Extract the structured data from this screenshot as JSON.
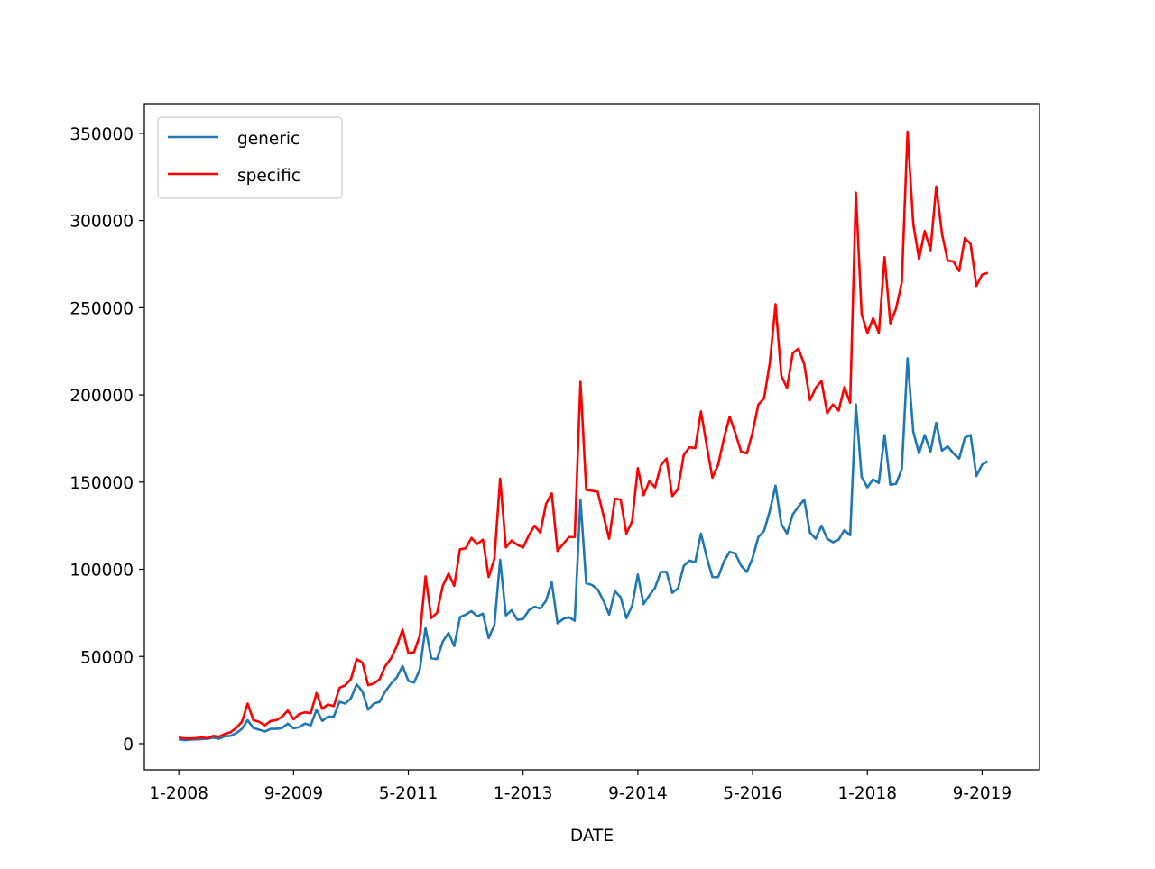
{
  "chart_data": {
    "type": "line",
    "xlabel": "DATE",
    "ylabel": "",
    "ylim": [
      -15000,
      367000
    ],
    "xlim": [
      "2007-07",
      "2020-07"
    ],
    "grid": false,
    "legend_position": "upper-left",
    "x_start": "2008-01",
    "x_step": "1 month",
    "xticks": [
      {
        "label": "1-2008",
        "date": "2008-01"
      },
      {
        "label": "9-2009",
        "date": "2009-09"
      },
      {
        "label": "5-2011",
        "date": "2011-05"
      },
      {
        "label": "1-2013",
        "date": "2013-01"
      },
      {
        "label": "9-2014",
        "date": "2014-09"
      },
      {
        "label": "5-2016",
        "date": "2016-05"
      },
      {
        "label": "1-2018",
        "date": "2018-01"
      },
      {
        "label": "9-2019",
        "date": "2019-09"
      }
    ],
    "yticks": [
      0,
      50000,
      100000,
      150000,
      200000,
      250000,
      300000,
      350000
    ],
    "ytick_labels": [
      "0",
      "50000",
      "100000",
      "150000",
      "200000",
      "250000",
      "300000",
      "350000"
    ],
    "series": [
      {
        "name": "generic",
        "color": "#1f77b4",
        "values": [
          2500,
          2000,
          2300,
          2500,
          2600,
          2800,
          3500,
          2800,
          4200,
          4500,
          6000,
          8500,
          13500,
          9000,
          8000,
          7000,
          8500,
          8500,
          9000,
          11500,
          8800,
          9500,
          11500,
          10500,
          19500,
          13000,
          15500,
          15500,
          24000,
          23000,
          26000,
          34000,
          30000,
          19500,
          23000,
          24000,
          30000,
          34500,
          38000,
          44500,
          36000,
          35000,
          42500,
          66500,
          49000,
          48500,
          58500,
          63500,
          56000,
          72500,
          74000,
          76000,
          73000,
          74500,
          60500,
          68000,
          105500,
          73500,
          76500,
          71000,
          71500,
          76500,
          78500,
          77500,
          82000,
          92500,
          69000,
          71500,
          72500,
          70500,
          140000,
          92000,
          91000,
          88500,
          82000,
          74000,
          87500,
          84000,
          72000,
          79000,
          97000,
          80000,
          85000,
          89500,
          98500,
          98500,
          86500,
          89000,
          102000,
          105000,
          104000,
          120500,
          107000,
          95500,
          95500,
          104500,
          110000,
          109000,
          102000,
          98500,
          106500,
          118500,
          122000,
          133500,
          148000,
          126000,
          120500,
          131500,
          136000,
          140000,
          121000,
          117500,
          125000,
          117500,
          115500,
          117000,
          122500,
          119500,
          194500,
          153000,
          147000,
          151500,
          149500,
          177000,
          148500,
          149000,
          157500,
          221000,
          179000,
          166500,
          177000,
          167500,
          184000,
          168000,
          170500,
          166500,
          163500,
          175500,
          177000,
          153500,
          160000,
          162000
        ]
      },
      {
        "name": "specific",
        "color": "#ff0000",
        "values": [
          3500,
          3000,
          3000,
          3200,
          3500,
          3200,
          4500,
          4000,
          5500,
          6500,
          9000,
          12500,
          23000,
          13500,
          12500,
          10500,
          13000,
          13500,
          15500,
          19000,
          14000,
          17000,
          18000,
          17500,
          29000,
          20000,
          22500,
          21500,
          32000,
          33500,
          37000,
          48500,
          46500,
          33500,
          34500,
          37000,
          44500,
          49000,
          56000,
          65500,
          52000,
          52500,
          62000,
          96000,
          72000,
          75000,
          90500,
          97500,
          90500,
          111500,
          112000,
          118000,
          114500,
          117000,
          95500,
          106000,
          152000,
          112500,
          116500,
          114000,
          112500,
          119500,
          125000,
          121000,
          137500,
          143500,
          110500,
          114500,
          118500,
          118500,
          207500,
          145500,
          145000,
          144500,
          131000,
          117500,
          140500,
          140000,
          120500,
          127500,
          158000,
          142500,
          150500,
          147000,
          159500,
          163500,
          142000,
          146000,
          165500,
          170000,
          169500,
          190500,
          171000,
          152500,
          160000,
          175000,
          187500,
          178000,
          167500,
          166500,
          178500,
          194500,
          198000,
          218500,
          252000,
          211000,
          204000,
          224000,
          226500,
          217500,
          197000,
          204000,
          208000,
          189500,
          194500,
          191000,
          204500,
          195500,
          316000,
          246500,
          235500,
          244000,
          235500,
          279000,
          241000,
          249500,
          264500,
          351000,
          298000,
          278000,
          294000,
          283000,
          319500,
          292500,
          277000,
          276500,
          271000,
          290000,
          286500,
          262500,
          269000,
          270000
        ]
      }
    ]
  }
}
